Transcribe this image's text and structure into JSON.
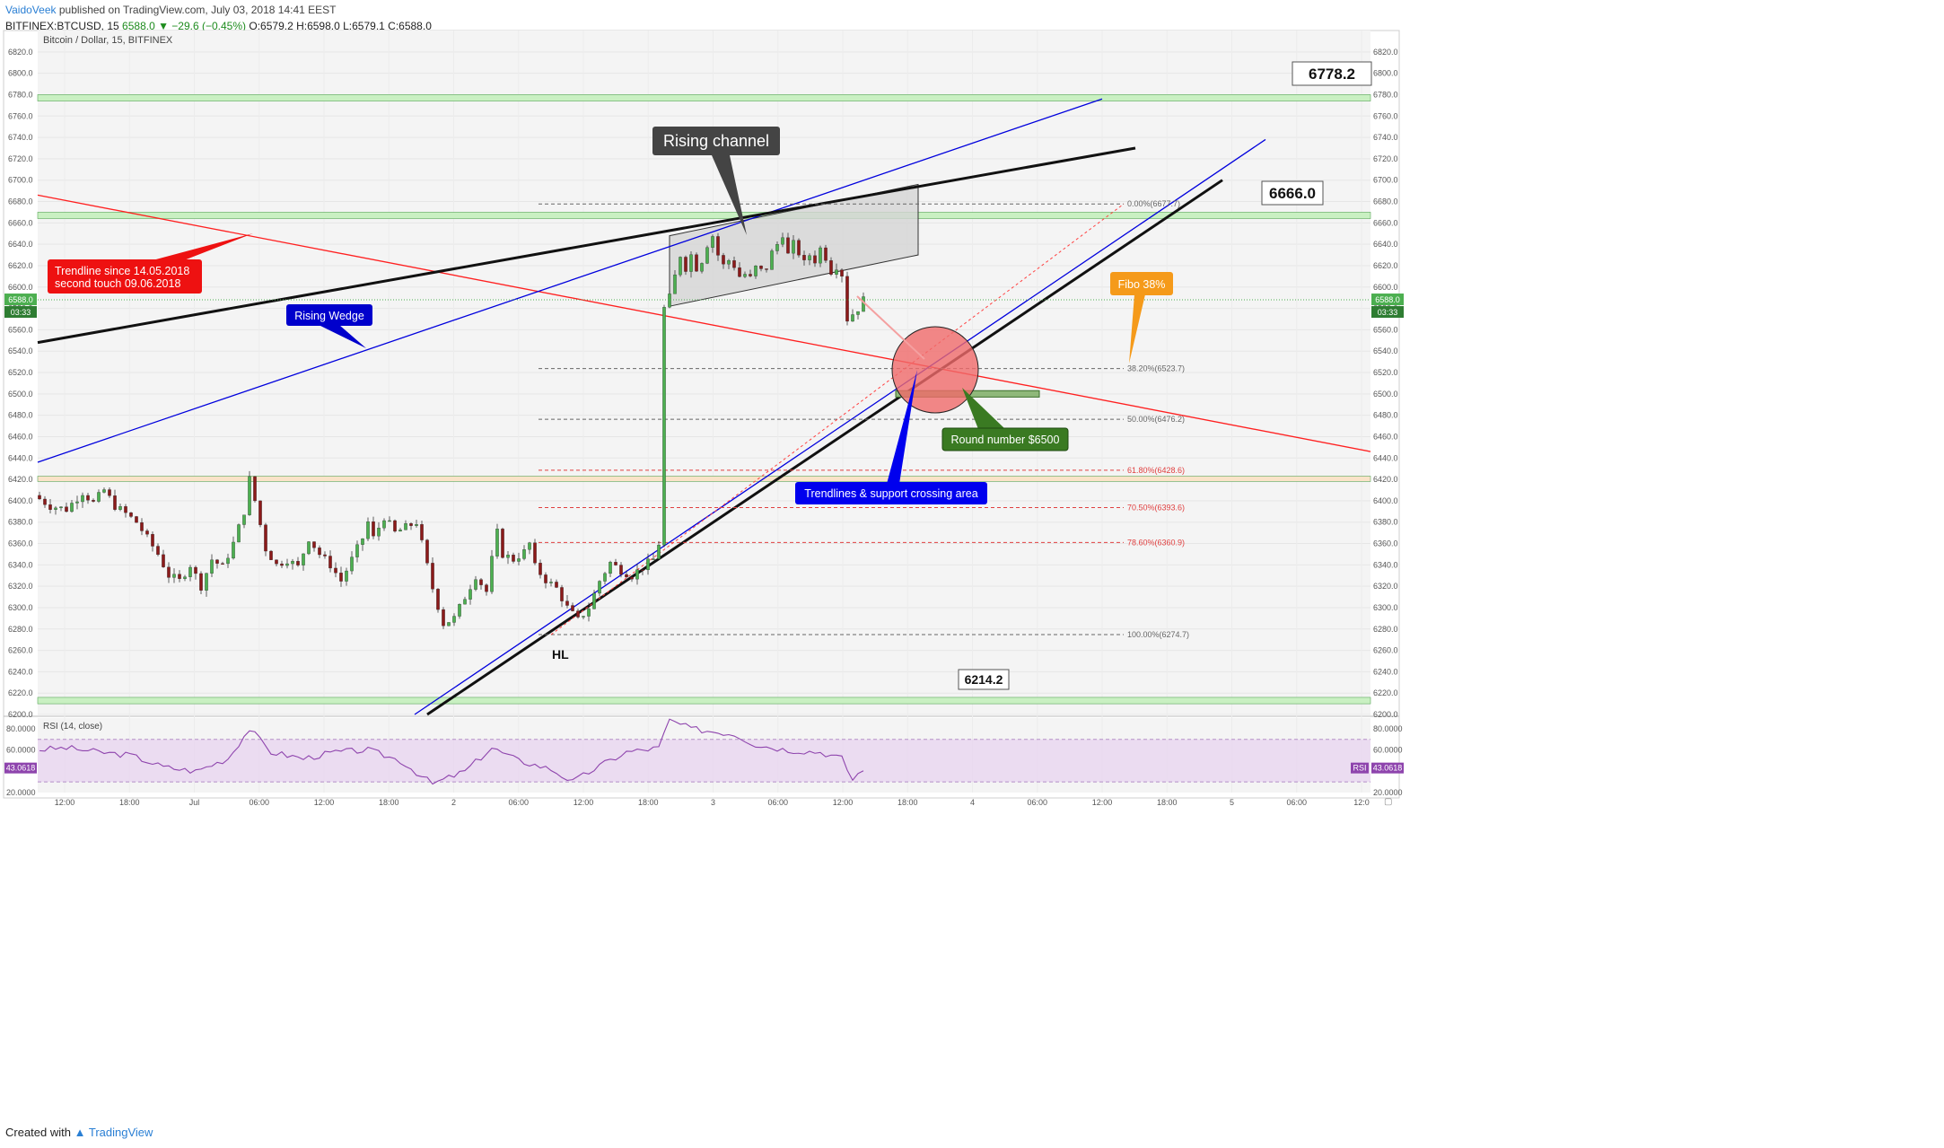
{
  "header": {
    "author": "VaidoVeek",
    "published": "published on TradingView.com, July 03, 2018 14:41 EEST",
    "symbol_line": "BITFINEX:BTCUSD, 15",
    "price_change": "6588.0 ▼ −29.6 (−0.45%)",
    "ohlc": "O:6579.2 H:6598.0 L:6579.1 C:6588.0"
  },
  "footer": {
    "created_with": "Created with",
    "brand": "TradingView"
  },
  "chart_data": {
    "type": "candlestick",
    "title": "Bitcoin / Dollar, 15, BITFINEX",
    "ylim": [
      6200,
      6840
    ],
    "y_ticks": [
      6200,
      6220,
      6240,
      6260,
      6280,
      6300,
      6320,
      6340,
      6360,
      6380,
      6400,
      6420,
      6440,
      6460,
      6480,
      6500,
      6520,
      6540,
      6560,
      6580,
      6600,
      6620,
      6640,
      6660,
      6680,
      6700,
      6720,
      6740,
      6760,
      6780,
      6800,
      6820
    ],
    "x_ticks": [
      "12:00",
      "18:00",
      "Jul",
      "06:00",
      "12:00",
      "18:00",
      "2",
      "06:00",
      "12:00",
      "18:00",
      "3",
      "06:00",
      "12:00",
      "18:00",
      "4",
      "06:00",
      "12:00",
      "18:00",
      "5",
      "06:00",
      "12:0"
    ],
    "last_price": "6588.0",
    "countdown": "03:33",
    "price_path": [
      [
        0,
        6405
      ],
      [
        3,
        6395
      ],
      [
        6,
        6392
      ],
      [
        9,
        6408
      ],
      [
        11,
        6398
      ],
      [
        13,
        6410
      ],
      [
        15,
        6395
      ],
      [
        17,
        6388
      ],
      [
        19,
        6380
      ],
      [
        21,
        6365
      ],
      [
        23,
        6350
      ],
      [
        25,
        6330
      ],
      [
        27,
        6325
      ],
      [
        29,
        6340
      ],
      [
        31,
        6320
      ],
      [
        33,
        6345
      ],
      [
        35,
        6338
      ],
      [
        37,
        6360
      ],
      [
        39,
        6390
      ],
      [
        40,
        6420
      ],
      [
        41,
        6400
      ],
      [
        43,
        6355
      ],
      [
        45,
        6340
      ],
      [
        47,
        6345
      ],
      [
        49,
        6338
      ],
      [
        51,
        6365
      ],
      [
        53,
        6350
      ],
      [
        55,
        6340
      ],
      [
        57,
        6325
      ],
      [
        59,
        6345
      ],
      [
        61,
        6365
      ],
      [
        62,
        6380
      ],
      [
        63,
        6365
      ],
      [
        65,
        6385
      ],
      [
        67,
        6370
      ],
      [
        69,
        6375
      ],
      [
        71,
        6380
      ],
      [
        72,
        6360
      ],
      [
        74,
        6318
      ],
      [
        76,
        6285
      ],
      [
        78,
        6290
      ],
      [
        80,
        6310
      ],
      [
        82,
        6330
      ],
      [
        84,
        6315
      ],
      [
        85,
        6345
      ],
      [
        86,
        6370
      ],
      [
        87,
        6350
      ],
      [
        89,
        6345
      ],
      [
        91,
        6352
      ],
      [
        92,
        6360
      ],
      [
        93,
        6338
      ],
      [
        95,
        6326
      ],
      [
        97,
        6318
      ],
      [
        99,
        6300
      ],
      [
        101,
        6288
      ],
      [
        103,
        6300
      ],
      [
        105,
        6325
      ],
      [
        107,
        6342
      ],
      [
        109,
        6335
      ],
      [
        111,
        6330
      ],
      [
        113,
        6338
      ],
      [
        115,
        6345
      ],
      [
        116,
        6360
      ],
      [
        117,
        6580
      ],
      [
        118,
        6590
      ],
      [
        119,
        6610
      ],
      [
        120,
        6630
      ],
      [
        121,
        6618
      ],
      [
        122,
        6630
      ],
      [
        123,
        6618
      ],
      [
        124,
        6625
      ],
      [
        125,
        6640
      ],
      [
        126,
        6648
      ],
      [
        127,
        6630
      ],
      [
        128,
        6620
      ],
      [
        129,
        6625
      ],
      [
        130,
        6620
      ],
      [
        131,
        6610
      ],
      [
        132,
        6612
      ],
      [
        133,
        6608
      ],
      [
        134,
        6618
      ],
      [
        135,
        6615
      ],
      [
        136,
        6618
      ],
      [
        137,
        6632
      ],
      [
        138,
        6640
      ],
      [
        139,
        6650
      ],
      [
        140,
        6630
      ],
      [
        141,
        6640
      ],
      [
        142,
        6632
      ],
      [
        143,
        6622
      ],
      [
        144,
        6630
      ],
      [
        145,
        6625
      ],
      [
        146,
        6636
      ],
      [
        147,
        6628
      ],
      [
        148,
        6615
      ],
      [
        149,
        6620
      ],
      [
        150,
        6612
      ],
      [
        151,
        6570
      ],
      [
        152,
        6575
      ],
      [
        153,
        6580
      ],
      [
        154,
        6588
      ]
    ],
    "rsi": {
      "label": "RSI (14, close)",
      "value": "43.0618",
      "tag": "RSI",
      "ylim": [
        20,
        90
      ],
      "ticks": [
        "20.0000",
        "60.0000",
        "80.0000"
      ],
      "bands": [
        30,
        70
      ],
      "path": [
        [
          0,
          60
        ],
        [
          6,
          62
        ],
        [
          12,
          58
        ],
        [
          18,
          55
        ],
        [
          24,
          44
        ],
        [
          30,
          40
        ],
        [
          36,
          52
        ],
        [
          40,
          80
        ],
        [
          44,
          58
        ],
        [
          50,
          52
        ],
        [
          56,
          58
        ],
        [
          62,
          60
        ],
        [
          68,
          50
        ],
        [
          74,
          28
        ],
        [
          80,
          40
        ],
        [
          85,
          62
        ],
        [
          90,
          50
        ],
        [
          96,
          42
        ],
        [
          100,
          30
        ],
        [
          105,
          45
        ],
        [
          110,
          58
        ],
        [
          116,
          62
        ],
        [
          118,
          88
        ],
        [
          122,
          80
        ],
        [
          130,
          75
        ],
        [
          134,
          65
        ],
        [
          140,
          60
        ],
        [
          146,
          58
        ],
        [
          150,
          52
        ],
        [
          152,
          32
        ],
        [
          154,
          43
        ]
      ]
    },
    "fib": {
      "levels": [
        {
          "label": "0.00%(6677.7)",
          "value": 6677.7,
          "color": "#666"
        },
        {
          "label": "38.20%(6523.7)",
          "value": 6523.7,
          "color": "#666"
        },
        {
          "label": "50.00%(6476.2)",
          "value": 6476.2,
          "color": "#666"
        },
        {
          "label": "61.80%(6428.6)",
          "value": 6428.6,
          "color": "#e04040"
        },
        {
          "label": "70.50%(6393.6)",
          "value": 6393.6,
          "color": "#e04040"
        },
        {
          "label": "78.60%(6360.9)",
          "value": 6360.9,
          "color": "#e04040"
        },
        {
          "label": "100.00%(6274.7)",
          "value": 6274.7,
          "color": "#666"
        }
      ]
    },
    "zones": [
      {
        "from": 6774,
        "to": 6780,
        "color": "#c9f0c2"
      },
      {
        "from": 6664,
        "to": 6670,
        "color": "#c9f0c2"
      },
      {
        "from": 6418,
        "to": 6423,
        "color": "#fae3c8"
      },
      {
        "from": 6210,
        "to": 6216,
        "color": "#c9f0c2"
      }
    ],
    "level_labels": [
      "6778.2",
      "6666.0",
      "6214.2"
    ],
    "annotations": {
      "rising_channel": "Rising channel",
      "trendline_red": "Trendline since 14.05.2018\nsecond touch 09.06.2018",
      "rising_wedge": "Rising Wedge",
      "fibo": "Fibo 38%",
      "round_number": "Round number $6500",
      "crossing": "Trendlines & support crossing area",
      "hl": "HL"
    },
    "colors": {
      "up": "#4caf50",
      "down": "#8b1a1a",
      "red_line": "#ff2020",
      "blue_line": "#0000dd",
      "rsi": "#8e44ad"
    }
  }
}
